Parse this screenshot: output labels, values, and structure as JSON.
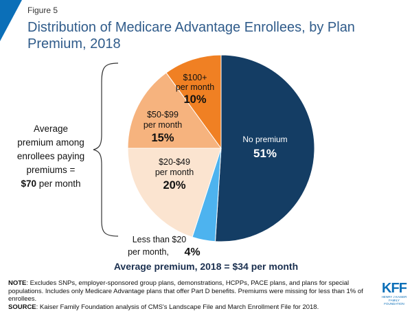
{
  "figure_label": "Figure 5",
  "title": "Distribution of Medicare Advantage Enrollees, by Plan Premium, 2018",
  "side_note": {
    "line1": "Average",
    "line2": "premium among",
    "line3": "enrollees paying",
    "line4": "premiums =",
    "amount": "$70",
    "suffix": "per month"
  },
  "subtitle": "Average premium, 2018 = $34 per month",
  "notes": {
    "note_label": "NOTE",
    "note_text": ": Excludes SNPs, employer-sponsored group plans, demonstrations, HCPPs, PACE plans, and plans for special populations. Includes only Medicare Advantage plans that offer Part D benefits. Premiums were missing for less than 1% of enrollees.",
    "source_label": "SOURCE",
    "source_text": ": Kaiser Family Foundation analysis of CMS's Landscape File and March Enrollment File for 2018."
  },
  "logo": {
    "mark": "KFF",
    "sub1": "HENRY J KAISER",
    "sub2": "FAMILY FOUNDATION"
  },
  "colors": {
    "title": "#2f5b8a",
    "no_premium": "#143d64",
    "less_than_20": "#4db3ef",
    "p20_49": "#fbe4d0",
    "p50_99": "#f6b37e",
    "p100_plus": "#f08023",
    "brand": "#0b6fb8"
  },
  "chart_data": {
    "type": "pie",
    "start": "12 o'clock",
    "direction": "clockwise",
    "slices": [
      {
        "name": "No premium",
        "label_lines": [
          "No premium"
        ],
        "value_label": "51%",
        "value": 51,
        "color": "#143d64",
        "text_color": "#ffffff"
      },
      {
        "name": "Less than $20 per month",
        "label_lines": [
          "Less than $20",
          "per month,"
        ],
        "value_label": "4%",
        "value": 4,
        "color": "#4db3ef",
        "text_color": "#111111"
      },
      {
        "name": "$20-$49 per month",
        "label_lines": [
          "$20-$49",
          "per month"
        ],
        "value_label": "20%",
        "value": 20,
        "color": "#fbe4d0",
        "text_color": "#111111"
      },
      {
        "name": "$50-$99 per month",
        "label_lines": [
          "$50-$99",
          "per month"
        ],
        "value_label": "15%",
        "value": 15,
        "color": "#f6b37e",
        "text_color": "#111111"
      },
      {
        "name": "$100+ per month",
        "label_lines": [
          "$100+",
          "per month"
        ],
        "value_label": "10%",
        "value": 10,
        "color": "#f08023",
        "text_color": "#111111"
      }
    ]
  }
}
